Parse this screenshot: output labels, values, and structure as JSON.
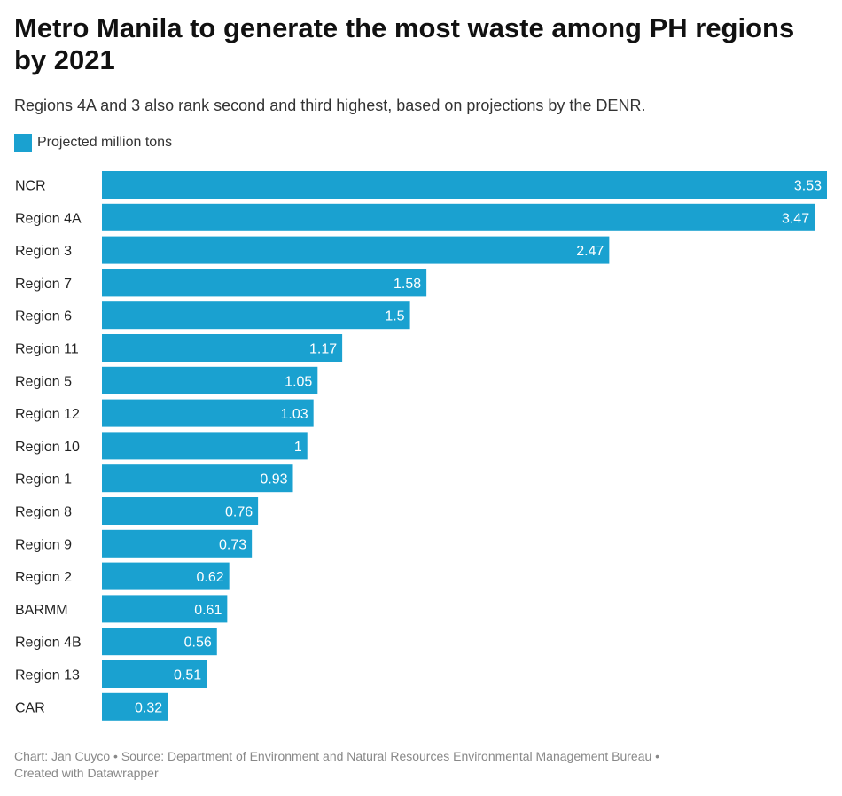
{
  "title": "Metro Manila to generate the most waste among PH regions by 2021",
  "subtitle": "Regions 4A and 3 also rank second and third highest, based on projections by the DENR.",
  "legend_label": "Projected million tons",
  "bar_color": "#1aa1d0",
  "footer": {
    "line1": "Chart: Jan Cuyco • Source: Department of Environment and Natural Resources Environmental Management Bureau •",
    "line2": "Created with Datawrapper"
  },
  "chart_data": {
    "type": "bar",
    "orientation": "horizontal",
    "categories": [
      "NCR",
      "Region 4A",
      "Region 3",
      "Region 7",
      "Region 6",
      "Region 11",
      "Region 5",
      "Region 12",
      "Region 10",
      "Region 1",
      "Region 8",
      "Region 9",
      "Region 2",
      "BARMM",
      "Region 4B",
      "Region 13",
      "CAR"
    ],
    "series": [
      {
        "name": "Projected million tons",
        "values": [
          3.53,
          3.47,
          2.47,
          1.58,
          1.5,
          1.17,
          1.05,
          1.03,
          1,
          0.93,
          0.76,
          0.73,
          0.62,
          0.61,
          0.56,
          0.51,
          0.32
        ],
        "labels": [
          "3.53",
          "3.47",
          "2.47",
          "1.58",
          "1.5",
          "1.17",
          "1.05",
          "1.03",
          "1",
          "0.93",
          "0.76",
          "0.73",
          "0.62",
          "0.61",
          "0.56",
          "0.51",
          "0.32"
        ]
      }
    ],
    "xlim": [
      0,
      3.53
    ],
    "grid": false,
    "legend_position": "top-left"
  }
}
